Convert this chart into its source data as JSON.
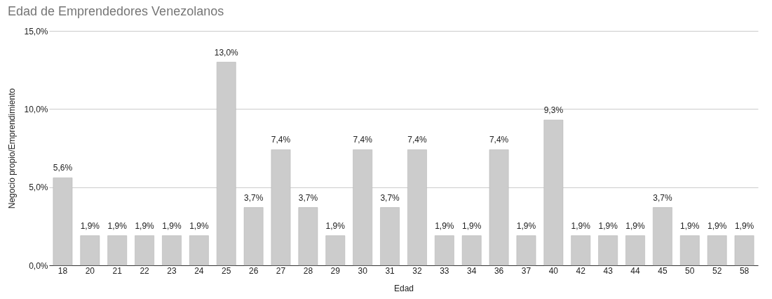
{
  "chart_data": {
    "type": "bar",
    "title": "Edad de Emprendedores Venezolanos",
    "xlabel": "Edad",
    "ylabel": "Negocio propio/Emprendimiento",
    "categories": [
      "18",
      "20",
      "21",
      "22",
      "23",
      "24",
      "25",
      "26",
      "27",
      "28",
      "29",
      "30",
      "31",
      "32",
      "33",
      "34",
      "36",
      "37",
      "40",
      "42",
      "43",
      "44",
      "45",
      "50",
      "52",
      "58"
    ],
    "values": [
      5.6,
      1.9,
      1.9,
      1.9,
      1.9,
      1.9,
      13.0,
      3.7,
      7.4,
      3.7,
      1.9,
      7.4,
      3.7,
      7.4,
      1.9,
      1.9,
      7.4,
      1.9,
      9.3,
      1.9,
      1.9,
      1.9,
      3.7,
      1.9,
      1.9,
      1.9
    ],
    "value_labels": [
      "5,6%",
      "1,9%",
      "1,9%",
      "1,9%",
      "1,9%",
      "1,9%",
      "13,0%",
      "3,7%",
      "7,4%",
      "3,7%",
      "1,9%",
      "7,4%",
      "3,7%",
      "7,4%",
      "1,9%",
      "1,9%",
      "7,4%",
      "1,9%",
      "9,3%",
      "1,9%",
      "1,9%",
      "1,9%",
      "3,7%",
      "1,9%",
      "1,9%",
      "1,9%"
    ],
    "color": "#cccccc",
    "ylim": [
      0,
      15
    ],
    "yticks": [
      {
        "value": 0,
        "label": "0,0%"
      },
      {
        "value": 5,
        "label": "5,0%"
      },
      {
        "value": 10,
        "label": "10,0%"
      },
      {
        "value": 15,
        "label": "15,0%"
      }
    ],
    "grid": "y"
  }
}
